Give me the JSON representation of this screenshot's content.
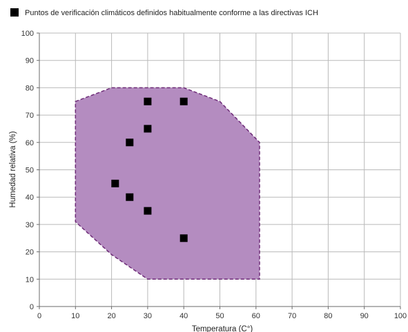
{
  "chart_data": {
    "type": "scatter",
    "legend": {
      "label": "Puntos de verificación climáticos definidos habitualmente conforme a las directivas ICH",
      "position": "top-left"
    },
    "xlabel": "Temperatura (C°)",
    "ylabel": "Humedad relativa (%)",
    "xlim": [
      0,
      100
    ],
    "ylim": [
      0,
      100
    ],
    "x_ticks": [
      0,
      10,
      20,
      30,
      40,
      50,
      60,
      70,
      80,
      90,
      100
    ],
    "y_ticks": [
      0,
      10,
      20,
      30,
      40,
      50,
      60,
      70,
      80,
      90,
      100
    ],
    "grid": true,
    "region": {
      "fill_color": "#b48cc0",
      "stroke_color": "#6e2c78",
      "boundary": [
        {
          "x": 10,
          "y": 75
        },
        {
          "x": 20,
          "y": 80
        },
        {
          "x": 40,
          "y": 80
        },
        {
          "x": 50,
          "y": 75
        },
        {
          "x": 61,
          "y": 60
        },
        {
          "x": 61,
          "y": 10
        },
        {
          "x": 30,
          "y": 10
        },
        {
          "x": 20,
          "y": 19
        },
        {
          "x": 10,
          "y": 31
        }
      ]
    },
    "marker_color": "#000000",
    "series": [
      {
        "name": "Puntos de verificación climáticos definidos habitualmente conforme a las directivas ICH",
        "points": [
          {
            "x": 30,
            "y": 75
          },
          {
            "x": 40,
            "y": 75
          },
          {
            "x": 30,
            "y": 65
          },
          {
            "x": 25,
            "y": 60
          },
          {
            "x": 21,
            "y": 45
          },
          {
            "x": 25,
            "y": 40
          },
          {
            "x": 30,
            "y": 35
          },
          {
            "x": 40,
            "y": 25
          }
        ]
      }
    ]
  }
}
